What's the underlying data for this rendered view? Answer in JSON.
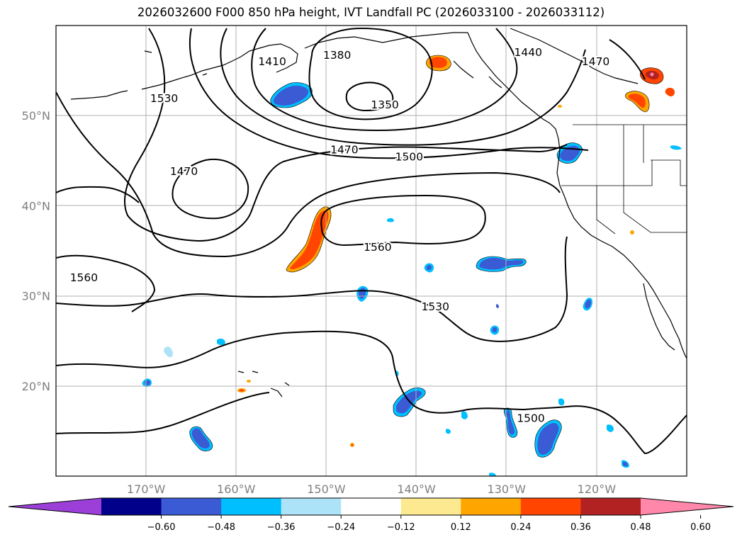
{
  "title": "2026032600 F000 850 hPa height, IVT Landfall PC (2026033100 - 2026033112)",
  "map": {
    "lon_range": [
      -180,
      -110
    ],
    "lat_range": [
      10,
      60
    ],
    "lon_ticks": [
      {
        "value": -170,
        "label": "170°W"
      },
      {
        "value": -160,
        "label": "160°W"
      },
      {
        "value": -150,
        "label": "150°W"
      },
      {
        "value": -140,
        "label": "140°W"
      },
      {
        "value": -130,
        "label": "130°W"
      },
      {
        "value": -120,
        "label": "120°W"
      }
    ],
    "lat_ticks": [
      {
        "value": 50,
        "label": "50°N"
      },
      {
        "value": 40,
        "label": "40°N"
      },
      {
        "value": 30,
        "label": "30°N"
      },
      {
        "value": 20,
        "label": "20°N"
      }
    ],
    "grid": true,
    "height_contour_labels": [
      {
        "text": "1380",
        "lon": -148.8,
        "lat": 56.7
      },
      {
        "text": "1410",
        "lon": -156.0,
        "lat": 56.0
      },
      {
        "text": "1350",
        "lon": -143.5,
        "lat": 51.2
      },
      {
        "text": "1530",
        "lon": -168.0,
        "lat": 51.9
      },
      {
        "text": "1440",
        "lon": -127.6,
        "lat": 57.0
      },
      {
        "text": "1470",
        "lon": -120.1,
        "lat": 56.0
      },
      {
        "text": "1470",
        "lon": -148.0,
        "lat": 46.2
      },
      {
        "text": "1500",
        "lon": -140.8,
        "lat": 45.4
      },
      {
        "text": "1470",
        "lon": -165.8,
        "lat": 43.8
      },
      {
        "text": "1560",
        "lon": -144.3,
        "lat": 35.4
      },
      {
        "text": "1560",
        "lon": -176.9,
        "lat": 32.0
      },
      {
        "text": "1530",
        "lon": -137.9,
        "lat": 28.8
      },
      {
        "text": "1500",
        "lon": -127.3,
        "lat": 16.4
      }
    ]
  },
  "colorbar": {
    "colors": [
      "#9b3fd8",
      "#00008b",
      "#3a5bd4",
      "#00bfff",
      "#ade3f8",
      "#ffffff",
      "#fde98f",
      "#ffa500",
      "#ff4500",
      "#b22222",
      "#ff88aa"
    ],
    "ticks": [
      "−0.60",
      "−0.48",
      "−0.36",
      "−0.24",
      "−0.12",
      "0.12",
      "0.24",
      "0.36",
      "0.48",
      "0.60"
    ],
    "extend": "both"
  }
}
